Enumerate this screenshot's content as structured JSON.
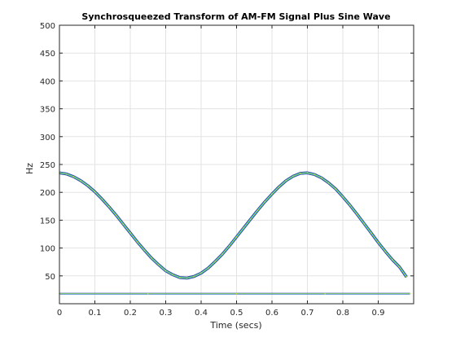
{
  "chart_data": {
    "type": "heatmap",
    "title": "Synchrosqueezed Transform of AM-FM Signal Plus Sine Wave",
    "xlabel": "Time (secs)",
    "ylabel": "Hz",
    "xlim": [
      0,
      1.0
    ],
    "ylim": [
      0,
      500
    ],
    "xticks": [
      0,
      0.1,
      0.2,
      0.3,
      0.4,
      0.5,
      0.6,
      0.7,
      0.8,
      0.9
    ],
    "yticks": [
      50,
      100,
      150,
      200,
      250,
      300,
      350,
      400,
      450,
      500
    ],
    "xtick_labels": [
      "0",
      "0.1",
      "0.2",
      "0.3",
      "0.4",
      "0.5",
      "0.6",
      "0.7",
      "0.8",
      "0.9"
    ],
    "ytick_labels": [
      "50",
      "100",
      "150",
      "200",
      "250",
      "300",
      "350",
      "400",
      "450",
      "500"
    ],
    "grid": true,
    "series": [
      {
        "x": [
          0.0,
          0.02,
          0.04,
          0.06,
          0.08,
          0.1,
          0.12,
          0.14,
          0.16,
          0.18,
          0.2,
          0.22,
          0.24,
          0.26,
          0.28,
          0.3,
          0.32,
          0.34,
          0.36,
          0.38,
          0.4,
          0.42,
          0.44,
          0.46,
          0.48,
          0.5,
          0.52,
          0.54,
          0.56,
          0.58,
          0.6,
          0.62,
          0.64,
          0.66,
          0.68,
          0.7,
          0.72,
          0.74,
          0.76,
          0.78,
          0.8,
          0.82,
          0.84,
          0.86,
          0.88,
          0.9,
          0.92,
          0.94,
          0.96,
          0.98
        ],
        "y": [
          235,
          233,
          228,
          221,
          212,
          201,
          188,
          174,
          159,
          143,
          127,
          111,
          96,
          82,
          70,
          59,
          52,
          47,
          46,
          49,
          55,
          64,
          76,
          89,
          104,
          120,
          136,
          152,
          168,
          183,
          197,
          210,
          221,
          229,
          234,
          235,
          232,
          226,
          217,
          206,
          192,
          177,
          161,
          144,
          127,
          110,
          94,
          79,
          66,
          48
        ]
      },
      {
        "x": [
          0.0,
          0.25,
          0.5,
          0.75,
          0.99
        ],
        "y": [
          18,
          18,
          18,
          18,
          18
        ]
      }
    ],
    "colors": {
      "outer": "#2b4fd8",
      "mid": "#21a6c9",
      "inner": "#4fc99a",
      "core": "#c8e034",
      "dark": "#1a1a6e"
    }
  }
}
